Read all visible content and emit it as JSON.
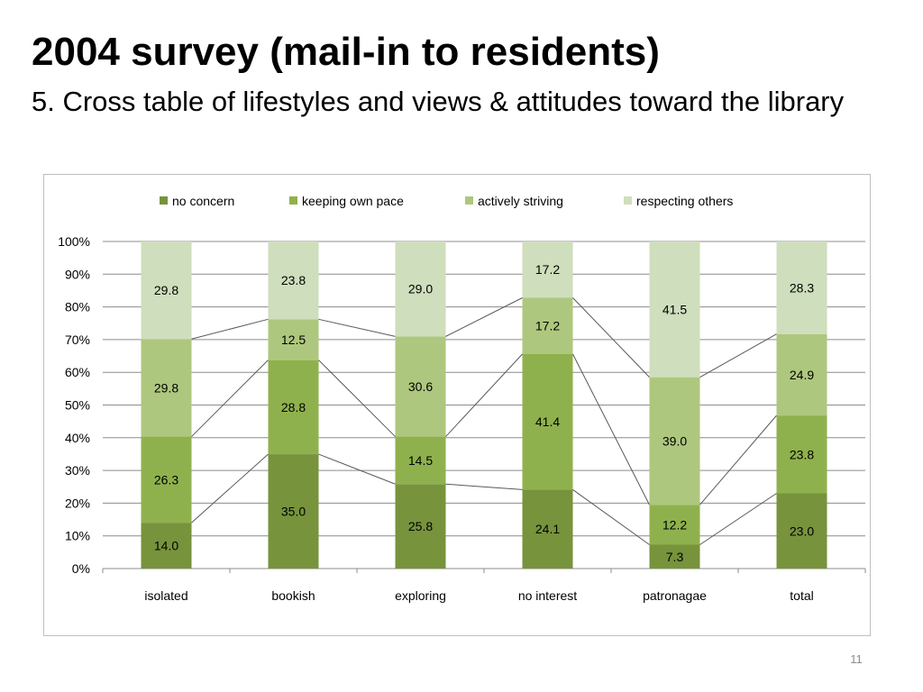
{
  "slide": {
    "title": "2004 survey (mail-in to residents)",
    "subtitle": "5. Cross table of lifestyles and views & attitudes toward the library",
    "page_number": "11"
  },
  "chart_data": {
    "type": "bar",
    "stacked": true,
    "percent_stacked": true,
    "categories": [
      "isolated",
      "bookish",
      "exploring",
      "no interest",
      "patronagae",
      "total"
    ],
    "series": [
      {
        "name": "no concern",
        "color": "#77933c",
        "values": [
          14.0,
          35.0,
          25.8,
          24.1,
          7.3,
          23.0
        ]
      },
      {
        "name": "keeping own pace",
        "color": "#8fb14d",
        "values": [
          26.3,
          28.8,
          14.5,
          41.4,
          12.2,
          23.8
        ]
      },
      {
        "name": "actively striving",
        "color": "#aec77e",
        "values": [
          29.8,
          12.5,
          30.6,
          17.2,
          39.0,
          24.9
        ]
      },
      {
        "name": "respecting others",
        "color": "#cfdebc",
        "values": [
          29.8,
          23.8,
          29.0,
          17.2,
          41.5,
          28.3
        ]
      }
    ],
    "data_labels": [
      [
        "14.0",
        "35.0",
        "25.8",
        "24.1",
        "7.3",
        "23.0"
      ],
      [
        "26.3",
        "28.8",
        "14.5",
        "41.4",
        "12.2",
        "23.8"
      ],
      [
        "29.8",
        "12.5",
        "30.6",
        "17.2",
        "39.0",
        "24.9"
      ],
      [
        "29.8",
        "23.8",
        "29.0",
        "17.2",
        "41.5",
        "28.3"
      ]
    ],
    "y_ticks": [
      "0%",
      "10%",
      "20%",
      "30%",
      "40%",
      "50%",
      "60%",
      "70%",
      "80%",
      "90%",
      "100%"
    ],
    "ylim": [
      0,
      100
    ],
    "series_lines": true,
    "grid": true,
    "legend_position": "top",
    "title": "",
    "xlabel": "",
    "ylabel": ""
  }
}
